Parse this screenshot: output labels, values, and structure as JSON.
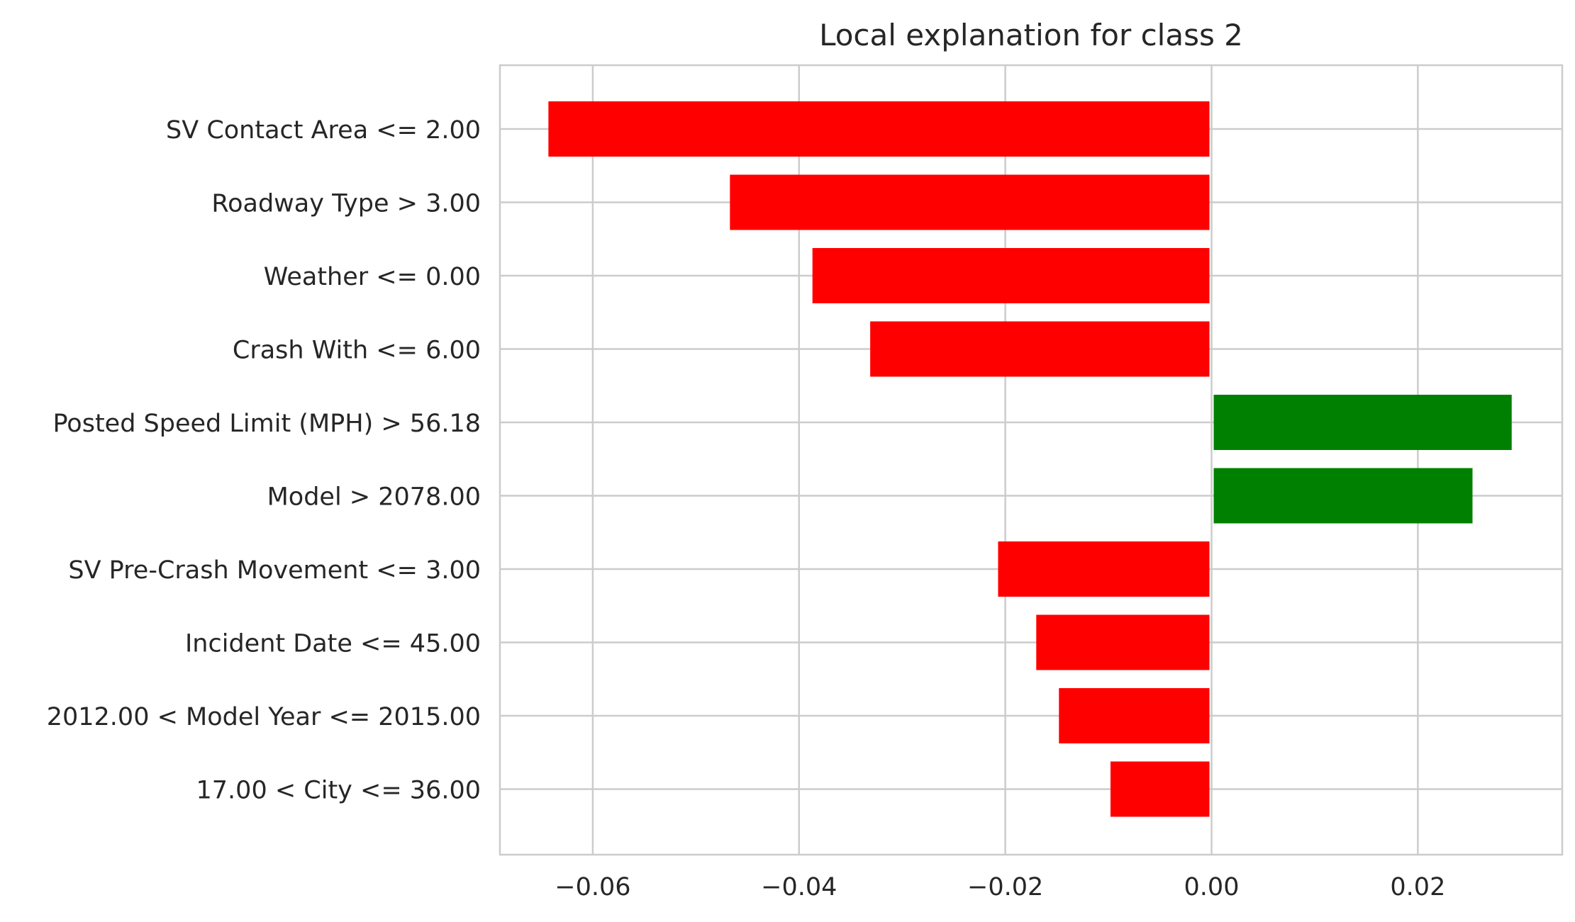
{
  "chart_data": {
    "type": "bar",
    "orientation": "horizontal",
    "title": "Local explanation for class 2",
    "xlabel": "",
    "ylabel": "",
    "xlim": [
      -0.069,
      0.034
    ],
    "x_ticks": [
      -0.06,
      -0.04,
      -0.02,
      0.0,
      0.02
    ],
    "x_tick_labels": [
      "−0.06",
      "−0.04",
      "−0.02",
      "0.00",
      "0.02"
    ],
    "grid": true,
    "legend": "none",
    "colors": {
      "negative": "#ff0000",
      "positive": "#008000",
      "grid": "#cccccc",
      "frame": "#cccccc",
      "text": "#262626"
    },
    "categories": [
      "SV Contact Area <= 2.00",
      "Roadway Type > 3.00",
      "Weather <= 0.00",
      "Crash With <= 6.00",
      "Posted Speed Limit (MPH) > 56.18",
      "Model > 2078.00",
      "SV Pre-Crash Movement <= 3.00",
      "Incident Date <= 45.00",
      "2012.00 < Model Year <= 2015.00",
      "17.00 < City <= 36.00"
    ],
    "values": [
      -0.0643,
      -0.0467,
      -0.0387,
      -0.0331,
      0.0291,
      0.0253,
      -0.0207,
      -0.017,
      -0.0148,
      -0.0098
    ]
  }
}
